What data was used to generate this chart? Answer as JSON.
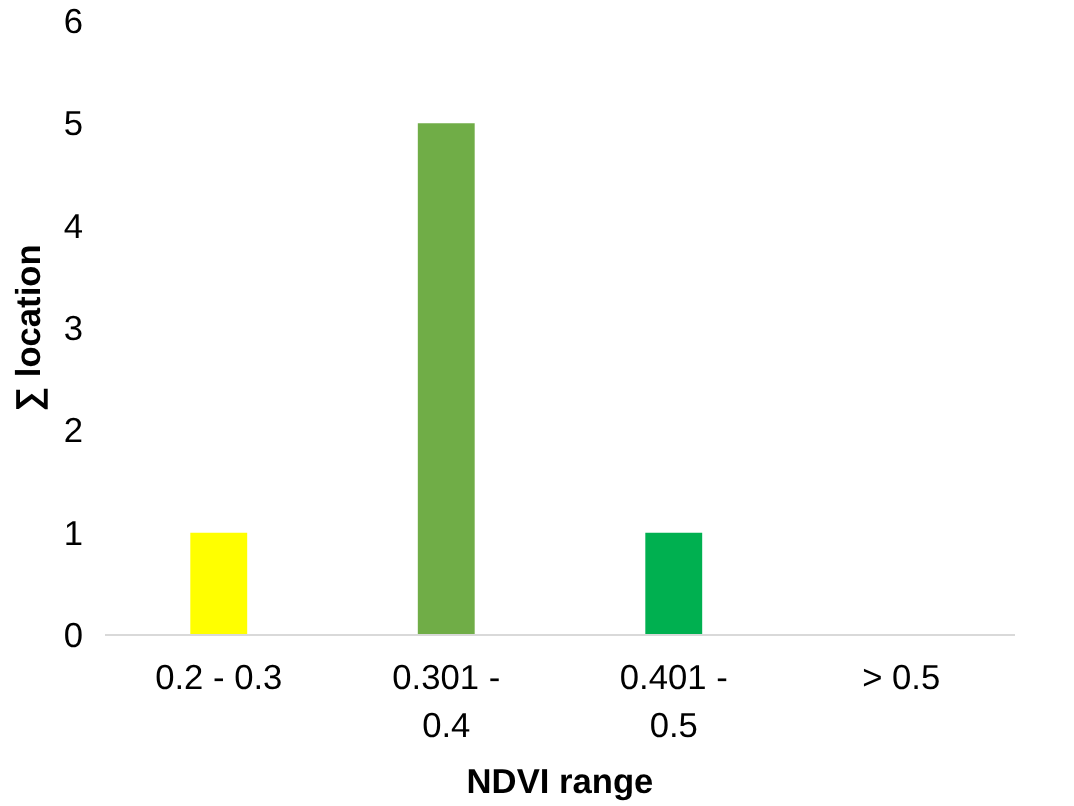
{
  "chart_data": {
    "type": "bar",
    "xlabel": "NDVI range",
    "ylabel": "∑ location",
    "categories": [
      "0.2 - 0.3",
      "0.301 - 0.4",
      "0.401 - 0.5",
      "> 0.5"
    ],
    "values": [
      1,
      5,
      1,
      0
    ],
    "colors": [
      "#ffff00",
      "#70ad47",
      "#00b050",
      "#00b050"
    ],
    "ylim": [
      0,
      6
    ],
    "yticks": [
      0,
      1,
      2,
      3,
      4,
      5,
      6
    ],
    "grid": false
  }
}
